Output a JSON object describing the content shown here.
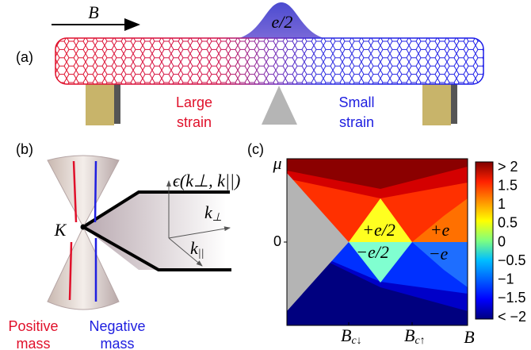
{
  "panels": {
    "a": {
      "label": "(a)",
      "field": "B",
      "charge": "e/2",
      "left": [
        "Large",
        "strain"
      ],
      "right": [
        "Small",
        "strain"
      ]
    },
    "b": {
      "label": "(b)",
      "point": "K",
      "energy": "ϵ(k⊥, k||)",
      "k_perp": {
        "main": "k",
        "sub": "⊥"
      },
      "k_par": {
        "main": "k",
        "sub": "||"
      },
      "positive": [
        "Positive",
        "mass"
      ],
      "negative": [
        "Negative",
        "mass"
      ]
    },
    "c": {
      "label": "(c)",
      "y_axis": "μ",
      "y_zero": "0",
      "x_axis": "B",
      "x_ticks": [
        {
          "main": "B",
          "sub": "c↓"
        },
        {
          "main": "B",
          "sub": "c↑"
        }
      ],
      "regions": [
        "+e/2",
        "+e",
        "−e/2",
        "−e"
      ],
      "colorbar": [
        "> 2",
        "1.5",
        "1",
        "0.5",
        "0",
        "−0.5",
        "−1",
        "−1.5",
        "< −2"
      ]
    }
  }
}
